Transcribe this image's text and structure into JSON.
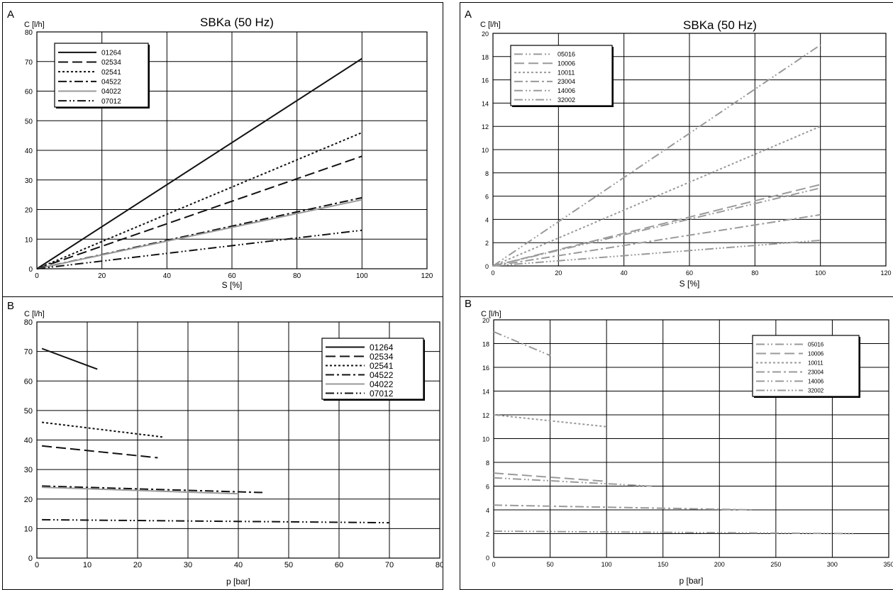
{
  "charts": [
    {
      "letter": "A",
      "chart_data": {
        "type": "line",
        "title": "SBKa (50 Hz)",
        "xlabel": "S [%]",
        "ylabel": "C [l/h]",
        "xlim": [
          0,
          120
        ],
        "ylim": [
          0,
          80
        ],
        "xticks": [
          "0",
          "20",
          "40",
          "60",
          "80",
          "100",
          "120"
        ],
        "yticks": [
          "0",
          "10",
          "20",
          "30",
          "40",
          "50",
          "60",
          "70",
          "80"
        ],
        "grid": true,
        "legend_position": "top-left",
        "series": [
          {
            "name": "01264",
            "color": "#111111",
            "dash": "solid",
            "x": [
              0,
              100
            ],
            "y": [
              0,
              71
            ]
          },
          {
            "name": "02534",
            "color": "#111111",
            "dash": "longdash",
            "x": [
              0,
              100
            ],
            "y": [
              0,
              38
            ]
          },
          {
            "name": "02541",
            "color": "#111111",
            "dash": "dot",
            "x": [
              0,
              100
            ],
            "y": [
              0,
              46
            ]
          },
          {
            "name": "04522",
            "color": "#111111",
            "dash": "dashdot",
            "x": [
              0,
              100
            ],
            "y": [
              0,
              24
            ]
          },
          {
            "name": "04022",
            "color": "#999999",
            "dash": "solid",
            "x": [
              0,
              100
            ],
            "y": [
              0,
              23.3
            ]
          },
          {
            "name": "07012",
            "color": "#111111",
            "dash": "dashdotdot",
            "x": [
              0,
              100
            ],
            "y": [
              0,
              13
            ]
          }
        ]
      }
    },
    {
      "letter": "B",
      "chart_data": {
        "type": "line",
        "title": "",
        "xlabel": "p [bar]",
        "ylabel": "C [l/h]",
        "xlim": [
          0,
          80
        ],
        "ylim": [
          0,
          80
        ],
        "xticks": [
          "0",
          "10",
          "20",
          "30",
          "40",
          "50",
          "60",
          "70",
          "80"
        ],
        "yticks": [
          "0",
          "10",
          "20",
          "30",
          "40",
          "50",
          "60",
          "70",
          "80"
        ],
        "grid": true,
        "legend_position": "top-right",
        "series": [
          {
            "name": "01264",
            "color": "#111111",
            "dash": "solid",
            "x": [
              1,
              12
            ],
            "y": [
              71,
              64
            ]
          },
          {
            "name": "02534",
            "color": "#111111",
            "dash": "longdash",
            "x": [
              1,
              24
            ],
            "y": [
              38,
              34
            ]
          },
          {
            "name": "02541",
            "color": "#111111",
            "dash": "dot",
            "x": [
              1,
              25
            ],
            "y": [
              46,
              41
            ]
          },
          {
            "name": "04522",
            "color": "#111111",
            "dash": "dashdot",
            "x": [
              1,
              45
            ],
            "y": [
              24.4,
              22.2
            ]
          },
          {
            "name": "04022",
            "color": "#999999",
            "dash": "solid",
            "x": [
              1,
              40
            ],
            "y": [
              24,
              21.8
            ]
          },
          {
            "name": "07012",
            "color": "#111111",
            "dash": "dashdotdot",
            "x": [
              1,
              70
            ],
            "y": [
              13,
              12
            ]
          }
        ]
      }
    },
    {
      "letter": "A",
      "chart_data": {
        "type": "line",
        "title": "SBKa (50 Hz)",
        "xlabel": "S [%]",
        "ylabel": "C [l/h]",
        "xlim": [
          0,
          120
        ],
        "ylim": [
          0,
          20
        ],
        "xticks": [
          "0",
          "20",
          "40",
          "60",
          "80",
          "100",
          "120"
        ],
        "yticks": [
          "0",
          "2",
          "4",
          "6",
          "8",
          "10",
          "12",
          "14",
          "16",
          "18",
          "20"
        ],
        "grid": true,
        "legend_position": "top-left",
        "series": [
          {
            "name": "05016",
            "color": "#9a9a9a",
            "dash": "dashdotdot",
            "x": [
              0,
              100
            ],
            "y": [
              0,
              19
            ]
          },
          {
            "name": "10006",
            "color": "#9a9a9a",
            "dash": "longdash",
            "x": [
              0,
              100
            ],
            "y": [
              0,
              7
            ]
          },
          {
            "name": "10011",
            "color": "#9a9a9a",
            "dash": "dot",
            "x": [
              0,
              100
            ],
            "y": [
              0,
              12
            ]
          },
          {
            "name": "23004",
            "color": "#9a9a9a",
            "dash": "dashdot",
            "x": [
              0,
              100
            ],
            "y": [
              0,
              4.4
            ]
          },
          {
            "name": "14006",
            "color": "#9a9a9a",
            "dash": "dashdotdot",
            "x": [
              0,
              100
            ],
            "y": [
              0,
              6.7
            ]
          },
          {
            "name": "32002",
            "color": "#9a9a9a",
            "dash": "dashdotdotdot",
            "x": [
              0,
              100
            ],
            "y": [
              0,
              2.2
            ]
          }
        ]
      }
    },
    {
      "letter": "B",
      "chart_data": {
        "type": "line",
        "title": "",
        "xlabel": "p [bar]",
        "ylabel": "C [l/h]",
        "xlim": [
          0,
          350
        ],
        "ylim": [
          0,
          20
        ],
        "xticks": [
          "0",
          "50",
          "100",
          "150",
          "200",
          "250",
          "300",
          "350"
        ],
        "yticks": [
          "0",
          "2",
          "4",
          "6",
          "8",
          "10",
          "12",
          "14",
          "16",
          "18",
          "20"
        ],
        "grid": true,
        "legend_position": "top-right",
        "series": [
          {
            "name": "05016",
            "color": "#9a9a9a",
            "dash": "dashdotdot",
            "x": [
              0,
              50
            ],
            "y": [
              19,
              17
            ]
          },
          {
            "name": "10006",
            "color": "#9a9a9a",
            "dash": "longdash",
            "x": [
              0,
              100
            ],
            "y": [
              7.1,
              6.4
            ]
          },
          {
            "name": "10011",
            "color": "#9a9a9a",
            "dash": "dot",
            "x": [
              0,
              100
            ],
            "y": [
              12,
              11
            ]
          },
          {
            "name": "23004",
            "color": "#9a9a9a",
            "dash": "dashdot",
            "x": [
              0,
              230
            ],
            "y": [
              4.4,
              4
            ]
          },
          {
            "name": "14006",
            "color": "#9a9a9a",
            "dash": "dashdotdot",
            "x": [
              0,
              140
            ],
            "y": [
              6.7,
              6
            ]
          },
          {
            "name": "32002",
            "color": "#9a9a9a",
            "dash": "dashdotdotdot",
            "x": [
              0,
              320
            ],
            "y": [
              2.2,
              2
            ]
          }
        ]
      }
    }
  ]
}
